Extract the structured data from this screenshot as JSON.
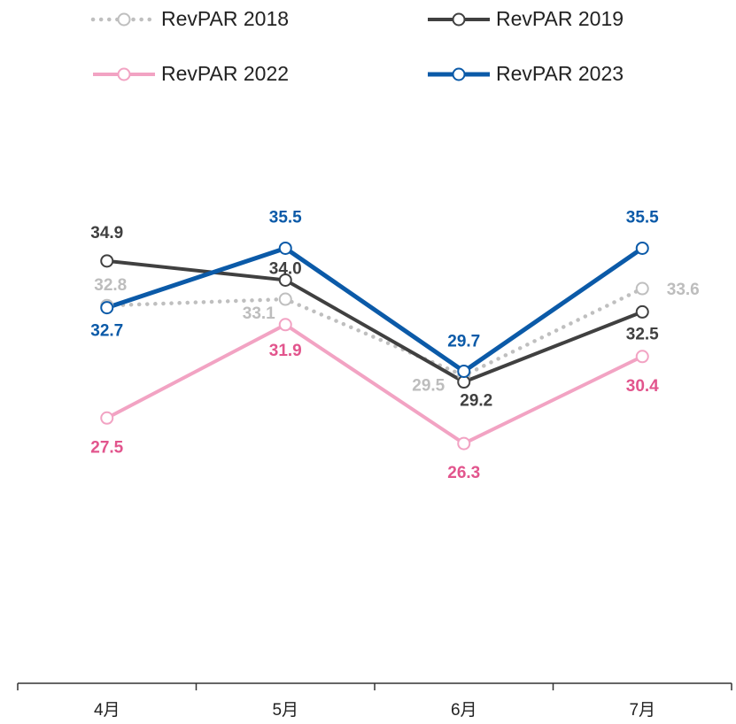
{
  "chart_data": {
    "type": "line",
    "categories": [
      "4月",
      "5月",
      "6月",
      "7月"
    ],
    "series": [
      {
        "name": "RevPAR 2018",
        "color": "#bfbfbf",
        "label_color": "#bdbdbd",
        "dash": "dotted",
        "values": [
          32.8,
          33.1,
          29.5,
          33.6
        ]
      },
      {
        "name": "RevPAR 2019",
        "color": "#404040",
        "label_color": "#404040",
        "dash": "solid",
        "values": [
          34.9,
          34.0,
          29.2,
          32.5
        ]
      },
      {
        "name": "RevPAR 2022",
        "color": "#f2a3c3",
        "label_color": "#e2558d",
        "dash": "solid",
        "values": [
          27.5,
          31.9,
          26.3,
          30.4
        ]
      },
      {
        "name": "RevPAR 2023",
        "color": "#0b5aa8",
        "label_color": "#0b5aa8",
        "dash": "solid",
        "values": [
          32.7,
          35.5,
          29.7,
          35.5
        ]
      }
    ],
    "ylim": [
      15,
      45
    ]
  }
}
